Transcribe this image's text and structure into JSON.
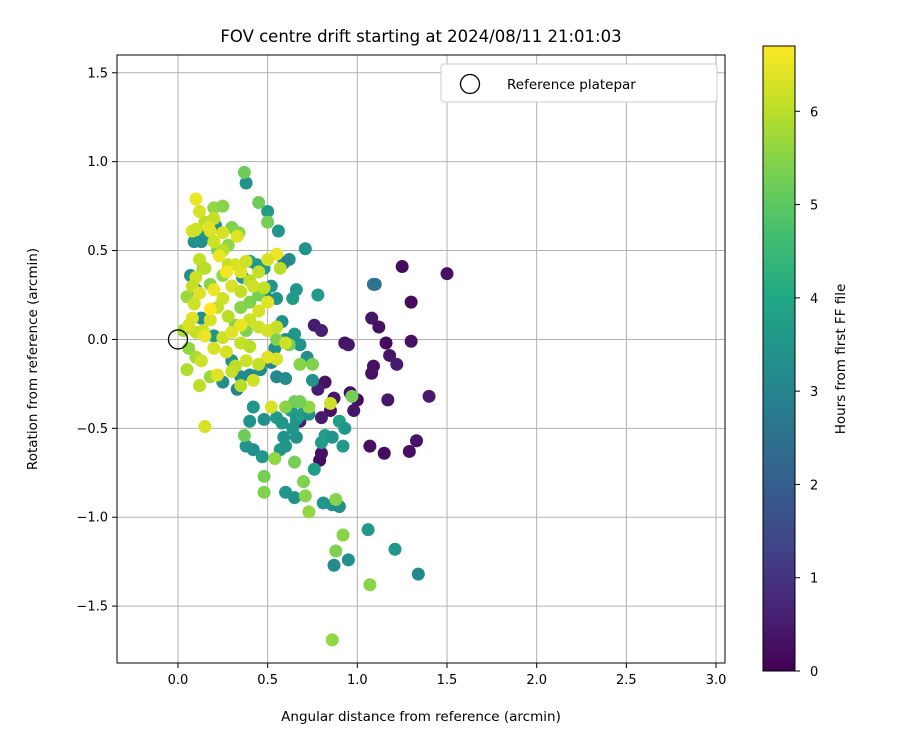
{
  "chart_data": {
    "type": "scatter",
    "title": "FOV centre drift starting at 2024/08/11 21:01:03",
    "xlabel": "Angular distance from reference (arcmin)",
    "ylabel": "Rotation from reference (arcmin)",
    "xlim": [
      -0.34,
      3.05
    ],
    "ylim": [
      -1.82,
      1.6
    ],
    "x_ticks": [
      0.0,
      0.5,
      1.0,
      1.5,
      2.0,
      2.5,
      3.0
    ],
    "x_tick_labels": [
      "0.0",
      "0.5",
      "1.0",
      "1.5",
      "2.0",
      "2.5",
      "3.0"
    ],
    "y_ticks": [
      -1.5,
      -1.0,
      -0.5,
      0.0,
      0.5,
      1.0,
      1.5
    ],
    "y_tick_labels": [
      "−1.5",
      "−1.0",
      "−0.5",
      "0.0",
      "0.5",
      "1.0",
      "1.5"
    ],
    "grid": true,
    "legend": {
      "position": "top-right",
      "entries": [
        {
          "label": "Reference platepar",
          "marker": "open-circle"
        }
      ]
    },
    "reference_point": {
      "x": 0.0,
      "y": 0.0
    },
    "colorbar": {
      "label": "Hours from first FF file",
      "colormap": "viridis",
      "min": 0,
      "max": 6.7,
      "ticks": [
        0,
        1,
        2,
        3,
        4,
        5,
        6
      ],
      "tick_labels": [
        "0",
        "1",
        "2",
        "3",
        "4",
        "5",
        "6"
      ]
    },
    "points": [
      [
        1.25,
        0.41,
        0.2
      ],
      [
        1.5,
        0.37,
        0.3
      ],
      [
        1.3,
        0.21,
        0.2
      ],
      [
        1.08,
        0.12,
        0.4
      ],
      [
        1.12,
        0.07,
        0.3
      ],
      [
        1.1,
        0.31,
        2.5
      ],
      [
        1.09,
        0.31,
        2.6
      ],
      [
        0.76,
        0.08,
        0.5
      ],
      [
        0.8,
        0.05,
        0.6
      ],
      [
        0.93,
        -0.02,
        0.3
      ],
      [
        0.95,
        -0.03,
        0.4
      ],
      [
        1.09,
        -0.15,
        0.3
      ],
      [
        1.16,
        -0.02,
        0.2
      ],
      [
        1.3,
        -0.01,
        0.3
      ],
      [
        1.18,
        -0.09,
        0.4
      ],
      [
        1.22,
        -0.14,
        0.5
      ],
      [
        1.08,
        -0.19,
        0.3
      ],
      [
        1.4,
        -0.32,
        0.5
      ],
      [
        1.17,
        -0.34,
        0.4
      ],
      [
        0.82,
        -0.24,
        0.3
      ],
      [
        0.87,
        -0.33,
        0.4
      ],
      [
        0.78,
        -0.28,
        0.5
      ],
      [
        0.85,
        -0.4,
        0.3
      ],
      [
        0.96,
        -0.3,
        0.3
      ],
      [
        1.0,
        -0.34,
        0.2
      ],
      [
        0.98,
        -0.4,
        0.4
      ],
      [
        0.8,
        -0.44,
        0.5
      ],
      [
        0.68,
        -0.46,
        0.6
      ],
      [
        1.07,
        -0.6,
        0.3
      ],
      [
        1.15,
        -0.64,
        0.2
      ],
      [
        1.29,
        -0.63,
        0.3
      ],
      [
        1.33,
        -0.57,
        0.4
      ],
      [
        0.79,
        -0.68,
        0.2
      ],
      [
        0.8,
        -0.64,
        0.3
      ],
      [
        0.38,
        0.88,
        3.4
      ],
      [
        0.5,
        0.72,
        3.6
      ],
      [
        0.56,
        0.61,
        3.5
      ],
      [
        0.71,
        0.51,
        3.4
      ],
      [
        0.62,
        0.45,
        3.2
      ],
      [
        0.59,
        0.43,
        2.9
      ],
      [
        0.66,
        0.28,
        3.5
      ],
      [
        0.78,
        0.25,
        3.6
      ],
      [
        0.64,
        0.23,
        3.6
      ],
      [
        0.58,
        0.1,
        3.3
      ],
      [
        0.65,
        0.03,
        3.5
      ],
      [
        0.68,
        -0.03,
        3.4
      ],
      [
        0.72,
        -0.1,
        3.3
      ],
      [
        0.75,
        -0.23,
        3.4
      ],
      [
        0.6,
        -0.22,
        3.2
      ],
      [
        0.55,
        -0.21,
        3.1
      ],
      [
        0.52,
        -0.13,
        3.0
      ],
      [
        0.46,
        -0.17,
        3.2
      ],
      [
        0.33,
        -0.28,
        3.0
      ],
      [
        0.42,
        -0.38,
        3.5
      ],
      [
        0.4,
        -0.46,
        3.4
      ],
      [
        0.48,
        -0.45,
        3.3
      ],
      [
        0.55,
        -0.44,
        3.6
      ],
      [
        0.58,
        -0.47,
        3.5
      ],
      [
        0.63,
        -0.4,
        3.6
      ],
      [
        0.66,
        -0.45,
        3.5
      ],
      [
        0.69,
        -0.42,
        3.8
      ],
      [
        0.73,
        -0.42,
        3.4
      ],
      [
        0.59,
        -0.55,
        3.4
      ],
      [
        0.64,
        -0.5,
        3.5
      ],
      [
        0.66,
        -0.55,
        3.4
      ],
      [
        0.38,
        -0.6,
        3.5
      ],
      [
        0.42,
        -0.62,
        3.3
      ],
      [
        0.47,
        -0.66,
        3.5
      ],
      [
        0.57,
        -0.62,
        3.5
      ],
      [
        0.6,
        -0.6,
        3.5
      ],
      [
        0.8,
        -0.58,
        3.6
      ],
      [
        0.82,
        -0.54,
        3.7
      ],
      [
        0.86,
        -0.55,
        3.5
      ],
      [
        0.9,
        -0.46,
        3.8
      ],
      [
        0.93,
        -0.5,
        3.5
      ],
      [
        0.92,
        -0.6,
        3.6
      ],
      [
        0.76,
        -0.73,
        3.7
      ],
      [
        0.65,
        -0.89,
        3.4
      ],
      [
        0.6,
        -0.86,
        3.5
      ],
      [
        0.81,
        -0.92,
        3.5
      ],
      [
        0.86,
        -0.93,
        3.4
      ],
      [
        0.9,
        -0.94,
        3.3
      ],
      [
        1.06,
        -1.07,
        3.6
      ],
      [
        1.21,
        -1.18,
        3.5
      ],
      [
        0.95,
        -1.24,
        3.3
      ],
      [
        0.87,
        -1.27,
        3.2
      ],
      [
        1.34,
        -1.32,
        3.1
      ],
      [
        0.21,
        0.64,
        3.4
      ],
      [
        0.15,
        0.59,
        3.5
      ],
      [
        0.13,
        0.55,
        3.3
      ],
      [
        0.09,
        0.55,
        3.4
      ],
      [
        0.07,
        0.36,
        3.3
      ],
      [
        0.1,
        0.28,
        3.4
      ],
      [
        0.13,
        0.12,
        3.3
      ],
      [
        0.2,
        0.02,
        3.5
      ],
      [
        0.3,
        -0.12,
        3.4
      ],
      [
        0.35,
        -0.21,
        3.2
      ],
      [
        0.4,
        -0.2,
        3.1
      ],
      [
        0.25,
        -0.24,
        3.3
      ],
      [
        0.6,
        0.0,
        3.2
      ],
      [
        0.54,
        -0.05,
        3.3
      ],
      [
        0.36,
        0.35,
        3.4
      ],
      [
        0.4,
        0.44,
        3.6
      ],
      [
        0.44,
        0.42,
        3.5
      ],
      [
        0.48,
        0.4,
        3.6
      ],
      [
        0.52,
        0.3,
        3.5
      ],
      [
        0.55,
        0.23,
        3.4
      ],
      [
        0.49,
        0.24,
        3.3
      ],
      [
        0.37,
        0.94,
        5.2
      ],
      [
        0.45,
        0.77,
        5.2
      ],
      [
        0.5,
        0.66,
        5.3
      ],
      [
        0.2,
        0.74,
        5.6
      ],
      [
        0.25,
        0.75,
        5.5
      ],
      [
        0.3,
        0.63,
        5.4
      ],
      [
        0.34,
        0.6,
        5.5
      ],
      [
        0.28,
        0.53,
        5.6
      ],
      [
        0.22,
        0.5,
        5.4
      ],
      [
        0.14,
        0.4,
        5.7
      ],
      [
        0.18,
        0.31,
        5.5
      ],
      [
        0.25,
        0.36,
        5.6
      ],
      [
        0.35,
        0.18,
        5.5
      ],
      [
        0.4,
        0.21,
        5.4
      ],
      [
        0.45,
        0.25,
        5.3
      ],
      [
        0.32,
        0.08,
        5.5
      ],
      [
        0.38,
        0.05,
        5.4
      ],
      [
        0.5,
        0.05,
        5.3
      ],
      [
        0.55,
        0.0,
        5.4
      ],
      [
        0.62,
        -0.03,
        5.3
      ],
      [
        0.68,
        -0.14,
        5.5
      ],
      [
        0.75,
        -0.14,
        5.4
      ],
      [
        0.73,
        -0.38,
        5.6
      ],
      [
        0.65,
        -0.35,
        5.2
      ],
      [
        0.68,
        -0.35,
        5.3
      ],
      [
        0.6,
        -0.38,
        5.5
      ],
      [
        0.37,
        -0.54,
        5.2
      ],
      [
        0.48,
        -0.77,
        5.3
      ],
      [
        0.48,
        -0.86,
        5.4
      ],
      [
        0.54,
        -0.67,
        5.6
      ],
      [
        0.65,
        -0.69,
        5.3
      ],
      [
        0.7,
        -0.8,
        5.4
      ],
      [
        0.71,
        -0.88,
        5.5
      ],
      [
        0.73,
        -0.97,
        5.6
      ],
      [
        0.88,
        -0.9,
        5.5
      ],
      [
        0.92,
        -1.1,
        5.5
      ],
      [
        0.88,
        -1.19,
        5.4
      ],
      [
        1.07,
        -1.38,
        5.5
      ],
      [
        0.86,
        -1.69,
        5.6
      ],
      [
        0.97,
        -0.32,
        5.3
      ],
      [
        0.15,
        -0.49,
        6.3
      ],
      [
        0.05,
        0.24,
        5.7
      ],
      [
        0.03,
        0.05,
        5.8
      ],
      [
        0.05,
        -0.17,
        5.9
      ],
      [
        0.06,
        -0.05,
        5.6
      ],
      [
        0.1,
        -0.1,
        5.8
      ],
      [
        0.18,
        -0.21,
        5.7
      ],
      [
        0.12,
        -0.26,
        6.0
      ],
      [
        0.1,
        0.79,
        6.5
      ],
      [
        0.12,
        0.72,
        6.3
      ],
      [
        0.15,
        0.66,
        6.0
      ],
      [
        0.18,
        0.61,
        6.4
      ],
      [
        0.08,
        0.61,
        6.3
      ],
      [
        0.1,
        0.62,
        6.2
      ],
      [
        0.2,
        0.55,
        6.2
      ],
      [
        0.25,
        0.5,
        6.0
      ],
      [
        0.28,
        0.42,
        6.1
      ],
      [
        0.32,
        0.42,
        6.3
      ],
      [
        0.35,
        0.38,
        6.4
      ],
      [
        0.12,
        0.45,
        6.1
      ],
      [
        0.15,
        0.4,
        6.0
      ],
      [
        0.1,
        0.35,
        6.2
      ],
      [
        0.08,
        0.3,
        6.1
      ],
      [
        0.2,
        0.28,
        6.5
      ],
      [
        0.25,
        0.23,
        6.2
      ],
      [
        0.3,
        0.3,
        6.3
      ],
      [
        0.35,
        0.27,
        6.1
      ],
      [
        0.4,
        0.33,
        6.0
      ],
      [
        0.42,
        0.3,
        6.2
      ],
      [
        0.48,
        0.29,
        6.1
      ],
      [
        0.5,
        0.21,
        6.4
      ],
      [
        0.45,
        0.16,
        6.3
      ],
      [
        0.4,
        0.11,
        6.2
      ],
      [
        0.35,
        0.08,
        6.5
      ],
      [
        0.28,
        0.13,
        6.0
      ],
      [
        0.22,
        0.18,
        6.1
      ],
      [
        0.18,
        0.11,
        6.3
      ],
      [
        0.14,
        0.05,
        6.2
      ],
      [
        0.1,
        0.04,
        6.1
      ],
      [
        0.08,
        0.12,
        6.4
      ],
      [
        0.15,
        0.02,
        6.5
      ],
      [
        0.2,
        -0.05,
        6.3
      ],
      [
        0.25,
        0.01,
        6.2
      ],
      [
        0.3,
        0.04,
        6.4
      ],
      [
        0.35,
        -0.02,
        6.1
      ],
      [
        0.4,
        -0.04,
        6.0
      ],
      [
        0.45,
        0.07,
        6.2
      ],
      [
        0.5,
        0.05,
        6.3
      ],
      [
        0.55,
        0.07,
        6.1
      ],
      [
        0.6,
        -0.02,
        6.2
      ],
      [
        0.55,
        -0.11,
        6.3
      ],
      [
        0.5,
        -0.1,
        6.4
      ],
      [
        0.45,
        -0.14,
        6.1
      ],
      [
        0.38,
        -0.12,
        6.2
      ],
      [
        0.32,
        -0.15,
        6.0
      ],
      [
        0.27,
        -0.07,
        6.3
      ],
      [
        0.22,
        -0.2,
        6.4
      ],
      [
        0.3,
        -0.18,
        6.1
      ],
      [
        0.35,
        -0.26,
        6.0
      ],
      [
        0.42,
        -0.23,
        6.2
      ],
      [
        0.52,
        -0.38,
        6.3
      ],
      [
        0.85,
        -0.36,
        6.2
      ],
      [
        0.55,
        0.48,
        6.5
      ],
      [
        0.57,
        0.4,
        6.0
      ],
      [
        0.5,
        0.45,
        6.3
      ],
      [
        0.45,
        0.38,
        6.1
      ],
      [
        0.38,
        0.44,
        6.2
      ],
      [
        0.33,
        0.58,
        6.4
      ],
      [
        0.25,
        0.6,
        6.3
      ],
      [
        0.2,
        0.68,
        6.1
      ],
      [
        0.17,
        0.63,
        6.4
      ],
      [
        0.23,
        0.47,
        6.5
      ],
      [
        0.27,
        0.38,
        6.6
      ],
      [
        0.18,
        0.17,
        6.7
      ],
      [
        0.12,
        0.26,
        6.4
      ],
      [
        0.09,
        0.2,
        6.2
      ],
      [
        0.06,
        0.08,
        6.3
      ],
      [
        0.13,
        -0.12,
        6.2
      ]
    ]
  }
}
